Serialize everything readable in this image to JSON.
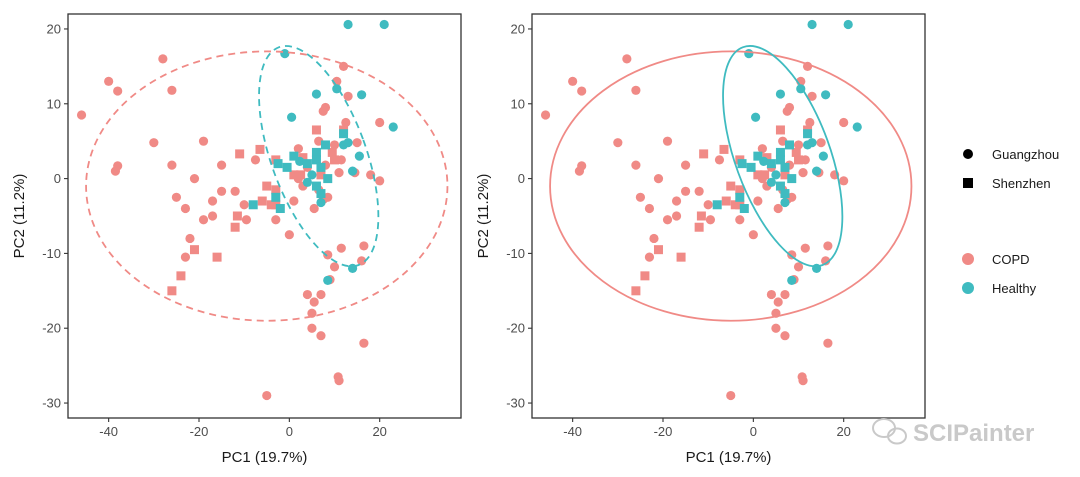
{
  "watermark": "SCIPainter",
  "colors": {
    "copd": "#F08A86",
    "healthy": "#3FBBC0",
    "frame": "#333333"
  },
  "legend": {
    "shape": [
      {
        "label": "Guangzhou",
        "shape": "circle"
      },
      {
        "label": "Shenzhen",
        "shape": "square"
      }
    ],
    "group": [
      {
        "label": "COPD",
        "color": "#F08A86"
      },
      {
        "label": "Healthy",
        "color": "#3FBBC0"
      }
    ]
  },
  "chart_data": [
    {
      "type": "scatter",
      "ellipse_style": "dashed",
      "xlabel": "PC1 (19.7%)",
      "ylabel": "PC2 (11.2%)",
      "xlim": [
        -49,
        38
      ],
      "ylim": [
        -32,
        22
      ],
      "xticks": [
        -40,
        -20,
        0,
        20
      ],
      "yticks": [
        -30,
        -20,
        -10,
        0,
        10,
        20
      ],
      "ellipses": [
        {
          "group": "COPD",
          "cx": -5,
          "cy": -1,
          "rx": 40,
          "ry": 18,
          "angle": 0
        },
        {
          "group": "Healthy",
          "cx": 6.5,
          "cy": 3,
          "rx": 10.5,
          "ry": 15.5,
          "angle": -20
        }
      ]
    },
    {
      "type": "scatter",
      "ellipse_style": "solid",
      "xlabel": "PC1 (19.7%)",
      "ylabel": "PC2 (11.2%)",
      "xlim": [
        -49,
        38
      ],
      "ylim": [
        -32,
        22
      ],
      "xticks": [
        -40,
        -20,
        0,
        20
      ],
      "yticks": [
        -30,
        -20,
        -10,
        0,
        10,
        20
      ],
      "ellipses": [
        {
          "group": "COPD",
          "cx": -5,
          "cy": -1,
          "rx": 40,
          "ry": 18,
          "angle": 0
        },
        {
          "group": "Healthy",
          "cx": 6.5,
          "cy": 3,
          "rx": 10.5,
          "ry": 15.5,
          "angle": -20
        }
      ]
    }
  ],
  "points": [
    {
      "x": -46,
      "y": 8.5,
      "g": "COPD",
      "s": "circle"
    },
    {
      "x": -40,
      "y": 13,
      "g": "COPD",
      "s": "circle"
    },
    {
      "x": -38,
      "y": 11.7,
      "g": "COPD",
      "s": "circle"
    },
    {
      "x": -38,
      "y": 1.7,
      "g": "COPD",
      "s": "circle"
    },
    {
      "x": -38.5,
      "y": 1,
      "g": "COPD",
      "s": "circle"
    },
    {
      "x": -28,
      "y": 16,
      "g": "COPD",
      "s": "circle"
    },
    {
      "x": -26,
      "y": 11.8,
      "g": "COPD",
      "s": "circle"
    },
    {
      "x": -30,
      "y": 4.8,
      "g": "COPD",
      "s": "circle"
    },
    {
      "x": -25,
      "y": -2.5,
      "g": "COPD",
      "s": "circle"
    },
    {
      "x": -26,
      "y": 1.8,
      "g": "COPD",
      "s": "circle"
    },
    {
      "x": -23,
      "y": -4,
      "g": "COPD",
      "s": "circle"
    },
    {
      "x": -22,
      "y": -8,
      "g": "COPD",
      "s": "circle"
    },
    {
      "x": -23,
      "y": -10.5,
      "g": "COPD",
      "s": "circle"
    },
    {
      "x": -17,
      "y": -3,
      "g": "COPD",
      "s": "circle"
    },
    {
      "x": -19,
      "y": -5.5,
      "g": "COPD",
      "s": "circle"
    },
    {
      "x": -19,
      "y": 5,
      "g": "COPD",
      "s": "circle"
    },
    {
      "x": -21,
      "y": 0,
      "g": "COPD",
      "s": "circle"
    },
    {
      "x": -17,
      "y": -5,
      "g": "COPD",
      "s": "circle"
    },
    {
      "x": -15,
      "y": 1.8,
      "g": "COPD",
      "s": "circle"
    },
    {
      "x": -15,
      "y": -1.7,
      "g": "COPD",
      "s": "circle"
    },
    {
      "x": -12,
      "y": -1.7,
      "g": "COPD",
      "s": "circle"
    },
    {
      "x": -10,
      "y": -3.5,
      "g": "COPD",
      "s": "circle"
    },
    {
      "x": -9.5,
      "y": -5.5,
      "g": "COPD",
      "s": "circle"
    },
    {
      "x": -7.5,
      "y": 2.5,
      "g": "COPD",
      "s": "circle"
    },
    {
      "x": -5,
      "y": -29,
      "g": "COPD",
      "s": "circle"
    },
    {
      "x": -3,
      "y": -5.5,
      "g": "COPD",
      "s": "circle"
    },
    {
      "x": 0,
      "y": -7.5,
      "g": "COPD",
      "s": "circle"
    },
    {
      "x": 1,
      "y": -3,
      "g": "COPD",
      "s": "circle"
    },
    {
      "x": 2,
      "y": 0,
      "g": "COPD",
      "s": "circle"
    },
    {
      "x": 2,
      "y": 4,
      "g": "COPD",
      "s": "circle"
    },
    {
      "x": 3,
      "y": -1,
      "g": "COPD",
      "s": "circle"
    },
    {
      "x": 4,
      "y": 1.5,
      "g": "COPD",
      "s": "circle"
    },
    {
      "x": 4,
      "y": -15.5,
      "g": "COPD",
      "s": "circle"
    },
    {
      "x": 5.5,
      "y": -4,
      "g": "COPD",
      "s": "circle"
    },
    {
      "x": 5.5,
      "y": -16.5,
      "g": "COPD",
      "s": "circle"
    },
    {
      "x": 5,
      "y": -18,
      "g": "COPD",
      "s": "circle"
    },
    {
      "x": 5,
      "y": -20,
      "g": "COPD",
      "s": "circle"
    },
    {
      "x": 6.5,
      "y": 5,
      "g": "COPD",
      "s": "circle"
    },
    {
      "x": 6.5,
      "y": -1.5,
      "g": "COPD",
      "s": "circle"
    },
    {
      "x": 7,
      "y": -21,
      "g": "COPD",
      "s": "circle"
    },
    {
      "x": 7,
      "y": -15.5,
      "g": "COPD",
      "s": "circle"
    },
    {
      "x": 7.5,
      "y": -2.8,
      "g": "COPD",
      "s": "circle"
    },
    {
      "x": 7.5,
      "y": 9,
      "g": "COPD",
      "s": "circle"
    },
    {
      "x": 8,
      "y": 9.5,
      "g": "COPD",
      "s": "circle"
    },
    {
      "x": 8,
      "y": 1.8,
      "g": "COPD",
      "s": "circle"
    },
    {
      "x": 8.5,
      "y": -2.5,
      "g": "COPD",
      "s": "circle"
    },
    {
      "x": 8.5,
      "y": -10.2,
      "g": "COPD",
      "s": "circle"
    },
    {
      "x": 9,
      "y": -13.5,
      "g": "COPD",
      "s": "circle"
    },
    {
      "x": 10,
      "y": -11.8,
      "g": "COPD",
      "s": "circle"
    },
    {
      "x": 10,
      "y": 4.5,
      "g": "COPD",
      "s": "circle"
    },
    {
      "x": 10.5,
      "y": 13,
      "g": "COPD",
      "s": "circle"
    },
    {
      "x": 10.8,
      "y": -26.5,
      "g": "COPD",
      "s": "circle"
    },
    {
      "x": 11,
      "y": -27,
      "g": "COPD",
      "s": "circle"
    },
    {
      "x": 11,
      "y": 0.8,
      "g": "COPD",
      "s": "circle"
    },
    {
      "x": 11.5,
      "y": -9.3,
      "g": "COPD",
      "s": "circle"
    },
    {
      "x": 11.5,
      "y": 2.5,
      "g": "COPD",
      "s": "circle"
    },
    {
      "x": 12,
      "y": 15,
      "g": "COPD",
      "s": "circle"
    },
    {
      "x": 12.5,
      "y": 7.5,
      "g": "COPD",
      "s": "circle"
    },
    {
      "x": 13,
      "y": 11,
      "g": "COPD",
      "s": "circle"
    },
    {
      "x": 14.5,
      "y": 0.8,
      "g": "COPD",
      "s": "circle"
    },
    {
      "x": 15,
      "y": 4.8,
      "g": "COPD",
      "s": "circle"
    },
    {
      "x": 16,
      "y": -11,
      "g": "COPD",
      "s": "circle"
    },
    {
      "x": 16.5,
      "y": -9,
      "g": "COPD",
      "s": "circle"
    },
    {
      "x": 16.5,
      "y": -22,
      "g": "COPD",
      "s": "circle"
    },
    {
      "x": 18,
      "y": 0.5,
      "g": "COPD",
      "s": "circle"
    },
    {
      "x": 20,
      "y": 7.5,
      "g": "COPD",
      "s": "circle"
    },
    {
      "x": 20,
      "y": -0.3,
      "g": "COPD",
      "s": "circle"
    },
    {
      "x": -26,
      "y": -15,
      "g": "COPD",
      "s": "square"
    },
    {
      "x": -24,
      "y": -13,
      "g": "COPD",
      "s": "square"
    },
    {
      "x": -21,
      "y": -9.5,
      "g": "COPD",
      "s": "square"
    },
    {
      "x": -16,
      "y": -10.5,
      "g": "COPD",
      "s": "square"
    },
    {
      "x": -12,
      "y": -6.5,
      "g": "COPD",
      "s": "square"
    },
    {
      "x": -11,
      "y": 3.3,
      "g": "COPD",
      "s": "square"
    },
    {
      "x": -11.5,
      "y": -5,
      "g": "COPD",
      "s": "square"
    },
    {
      "x": -6,
      "y": -3,
      "g": "COPD",
      "s": "square"
    },
    {
      "x": -4,
      "y": -3.5,
      "g": "COPD",
      "s": "square"
    },
    {
      "x": -3,
      "y": -3.5,
      "g": "COPD",
      "s": "square"
    },
    {
      "x": -3,
      "y": 2.5,
      "g": "COPD",
      "s": "square"
    },
    {
      "x": -6.5,
      "y": 3.9,
      "g": "COPD",
      "s": "square"
    },
    {
      "x": -5,
      "y": -1,
      "g": "COPD",
      "s": "square"
    },
    {
      "x": 1,
      "y": 0.5,
      "g": "COPD",
      "s": "square"
    },
    {
      "x": 2.5,
      "y": 0.5,
      "g": "COPD",
      "s": "square"
    },
    {
      "x": 3,
      "y": 2.8,
      "g": "COPD",
      "s": "square"
    },
    {
      "x": 6,
      "y": 6.5,
      "g": "COPD",
      "s": "square"
    },
    {
      "x": 7,
      "y": 0.5,
      "g": "COPD",
      "s": "square"
    },
    {
      "x": 9.5,
      "y": 3.5,
      "g": "COPD",
      "s": "square"
    },
    {
      "x": 10,
      "y": 2.5,
      "g": "COPD",
      "s": "square"
    },
    {
      "x": 12,
      "y": 6.5,
      "g": "COPD",
      "s": "square"
    },
    {
      "x": -3,
      "y": -1.5,
      "g": "COPD",
      "s": "square"
    },
    {
      "x": -1,
      "y": 16.7,
      "g": "Healthy",
      "s": "circle"
    },
    {
      "x": 0.5,
      "y": 8.2,
      "g": "Healthy",
      "s": "circle"
    },
    {
      "x": 2.3,
      "y": 2.3,
      "g": "Healthy",
      "s": "circle"
    },
    {
      "x": 4,
      "y": -0.5,
      "g": "Healthy",
      "s": "circle"
    },
    {
      "x": 5,
      "y": 0.5,
      "g": "Healthy",
      "s": "circle"
    },
    {
      "x": 6,
      "y": 11.3,
      "g": "Healthy",
      "s": "circle"
    },
    {
      "x": 7,
      "y": -3.2,
      "g": "Healthy",
      "s": "circle"
    },
    {
      "x": 8.5,
      "y": -13.6,
      "g": "Healthy",
      "s": "circle"
    },
    {
      "x": 10.5,
      "y": 12,
      "g": "Healthy",
      "s": "circle"
    },
    {
      "x": 12,
      "y": 4.5,
      "g": "Healthy",
      "s": "circle"
    },
    {
      "x": 13,
      "y": 20.6,
      "g": "Healthy",
      "s": "circle"
    },
    {
      "x": 16,
      "y": 11.2,
      "g": "Healthy",
      "s": "circle"
    },
    {
      "x": 21,
      "y": 20.6,
      "g": "Healthy",
      "s": "circle"
    },
    {
      "x": 23,
      "y": 6.9,
      "g": "Healthy",
      "s": "circle"
    },
    {
      "x": 13,
      "y": 4.8,
      "g": "Healthy",
      "s": "circle"
    },
    {
      "x": 14,
      "y": 1,
      "g": "Healthy",
      "s": "circle"
    },
    {
      "x": 15.5,
      "y": 3,
      "g": "Healthy",
      "s": "circle"
    },
    {
      "x": -8,
      "y": -3.5,
      "g": "Healthy",
      "s": "square"
    },
    {
      "x": -3,
      "y": -2.5,
      "g": "Healthy",
      "s": "square"
    },
    {
      "x": -2,
      "y": -4,
      "g": "Healthy",
      "s": "square"
    },
    {
      "x": -2.5,
      "y": 2,
      "g": "Healthy",
      "s": "square"
    },
    {
      "x": -0.5,
      "y": 1.5,
      "g": "Healthy",
      "s": "square"
    },
    {
      "x": 1,
      "y": 3,
      "g": "Healthy",
      "s": "square"
    },
    {
      "x": 4,
      "y": 2,
      "g": "Healthy",
      "s": "square"
    },
    {
      "x": 6,
      "y": 3.5,
      "g": "Healthy",
      "s": "square"
    },
    {
      "x": 6,
      "y": 2.5,
      "g": "Healthy",
      "s": "square"
    },
    {
      "x": 7,
      "y": 1.5,
      "g": "Healthy",
      "s": "square"
    },
    {
      "x": 8,
      "y": 4.5,
      "g": "Healthy",
      "s": "square"
    },
    {
      "x": 8.5,
      "y": 0,
      "g": "Healthy",
      "s": "square"
    },
    {
      "x": 6,
      "y": -1,
      "g": "Healthy",
      "s": "square"
    },
    {
      "x": 7,
      "y": -2,
      "g": "Healthy",
      "s": "square"
    },
    {
      "x": 12,
      "y": 6,
      "g": "Healthy",
      "s": "square"
    },
    {
      "x": 14,
      "y": -12,
      "g": "Healthy",
      "s": "circle"
    }
  ]
}
